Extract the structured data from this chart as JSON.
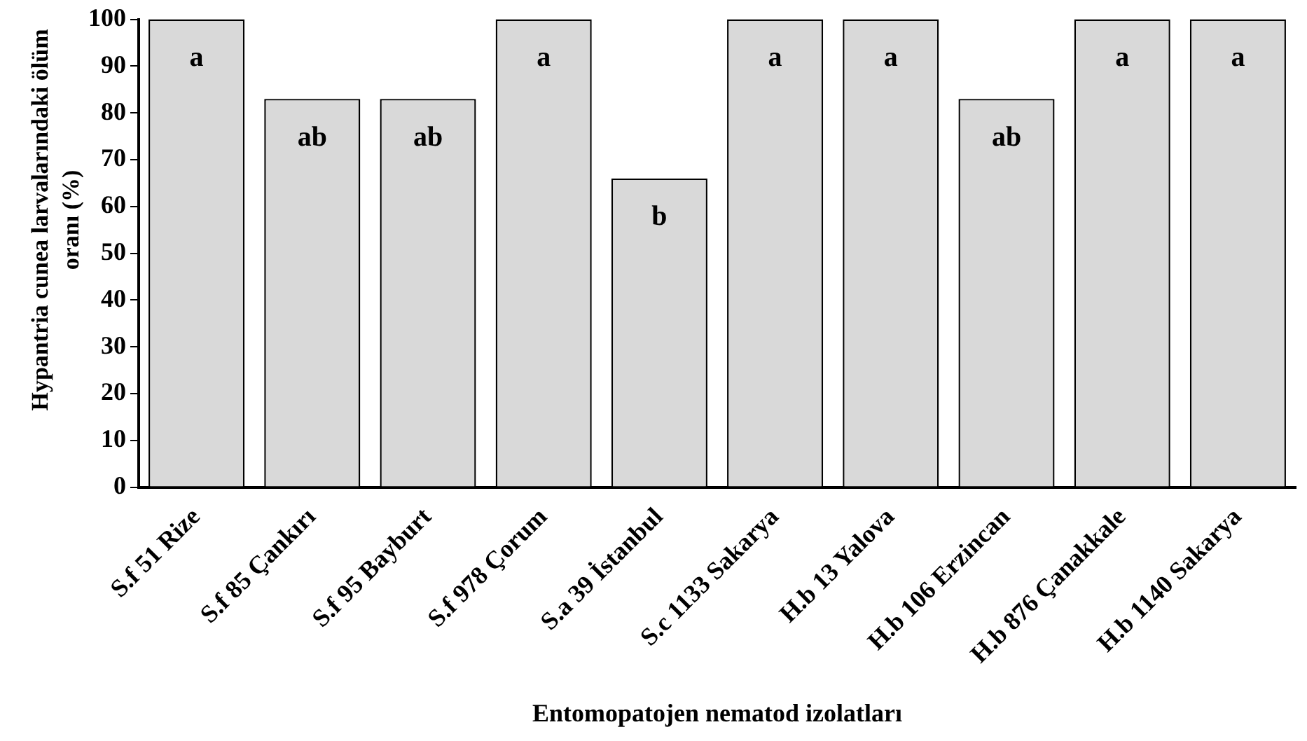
{
  "chart_data": {
    "type": "bar",
    "categories": [
      "S.f 51 Rize",
      "S.f 85 Çankırı",
      "S.f 95 Bayburt",
      "S.f 978 Çorum",
      "S.a 39 İstanbul",
      "S.c 1133 Sakarya",
      "H.b 13 Yalova",
      "H.b 106 Erzincan",
      "H.b 876 Çanakkale",
      "H.b 1140 Sakarya"
    ],
    "values": [
      100,
      83,
      83,
      100,
      66,
      100,
      100,
      83,
      100,
      100
    ],
    "color": "#d9d9d9",
    "xlabel": "Entomopatojen nematod izolatları",
    "ylabel": "Hypantria cunea larvalarındaki ölüm oranı (%)",
    "ylim": [
      0,
      100
    ],
    "yticks": [
      0,
      10,
      20,
      30,
      40,
      50,
      60,
      70,
      80,
      90,
      100
    ],
    "grid": false,
    "legend": false,
    "annotations": [
      {
        "text": "a",
        "x": "S.f 51 Rize",
        "y": 100
      },
      {
        "text": "ab",
        "x": "S.f 85 Çankırı",
        "y": 83
      },
      {
        "text": "ab",
        "x": "S.f 95 Bayburt",
        "y": 83
      },
      {
        "text": "a",
        "x": "S.f 978 Çorum",
        "y": 100
      },
      {
        "text": "b",
        "x": "S.a 39 İstanbul",
        "y": 66
      },
      {
        "text": "a",
        "x": "S.c 1133 Sakarya",
        "y": 100
      },
      {
        "text": "a",
        "x": "H.b 13 Yalova",
        "y": 100
      },
      {
        "text": "ab",
        "x": "H.b 106 Erzincan",
        "y": 83
      },
      {
        "text": "a",
        "x": "H.b 876 Çanakkale",
        "y": 100
      },
      {
        "text": "a",
        "x": "H.b 1140 Sakarya",
        "y": 100
      }
    ]
  }
}
